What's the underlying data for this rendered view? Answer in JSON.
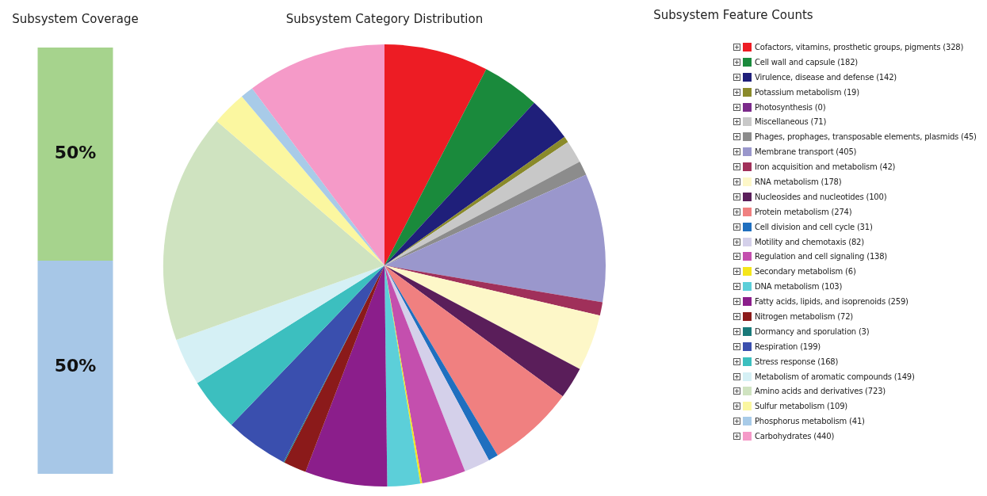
{
  "chart_data": [
    {
      "type": "bar",
      "title": "Subsystem Coverage",
      "categories": [
        null
      ],
      "stacked": true,
      "ylim": [
        0,
        100
      ],
      "series": [
        {
          "color": "#a7c7e7",
          "values": [
            50
          ],
          "value_labels": [
            "50%"
          ]
        },
        {
          "color": "#a6d38d",
          "values": [
            50
          ],
          "value_labels": [
            "50%"
          ]
        }
      ]
    },
    {
      "type": "pie",
      "title": "Subsystem Category Distribution",
      "legend": "right",
      "legend_title": "Subsystem Feature Counts",
      "categories": [
        "Cofactors, vitamins, prosthetic groups, pigments (328)",
        "Cell wall and capsule (182)",
        "Virulence, disease and defense (142)",
        "Potassium metabolism (19)",
        "Photosynthesis (0)",
        "Miscellaneous (71)",
        "Phages, prophages, transposable elements, plasmids (45)",
        "Membrane transport (405)",
        "Iron acquisition and metabolism (42)",
        "RNA metabolism (178)",
        "Nucleosides and nucleotides (100)",
        "Protein metabolism (274)",
        "Cell division and cell cycle (31)",
        "Motility and chemotaxis (82)",
        "Regulation and cell signaling (138)",
        "Secondary metabolism (6)",
        "DNA metabolism (103)",
        "Fatty acids, lipids, and isoprenoids (259)",
        "Nitrogen metabolism (72)",
        "Dormancy and sporulation (3)",
        "Respiration (199)",
        "Stress response (168)",
        "Metabolism of aromatic compounds (149)",
        "Amino acids and derivatives (723)",
        "Sulfur metabolism (109)",
        "Phosphorus metabolism (41)",
        "Carbohydrates (440)"
      ],
      "values": [
        328,
        182,
        142,
        19,
        0,
        71,
        45,
        405,
        42,
        178,
        100,
        274,
        31,
        82,
        138,
        6,
        103,
        259,
        72,
        3,
        199,
        168,
        149,
        723,
        109,
        41,
        440
      ],
      "colors": [
        "#ed1c24",
        "#1a8a3c",
        "#1f1f7a",
        "#8a8a2a",
        "#7b2a8a",
        "#c8c8c8",
        "#8c8c8c",
        "#9a97cc",
        "#a0305a",
        "#fdf7c8",
        "#5a1e5a",
        "#f08080",
        "#1f6fbf",
        "#d4d0ea",
        "#c44fae",
        "#f5e61a",
        "#5ccfd9",
        "#8b1e8b",
        "#8b1a1a",
        "#1a7a7a",
        "#3a4fae",
        "#3cbfbf",
        "#d5f0f5",
        "#cfe3c0",
        "#fbf7a0",
        "#a8cbe8",
        "#f59ac8"
      ]
    }
  ]
}
